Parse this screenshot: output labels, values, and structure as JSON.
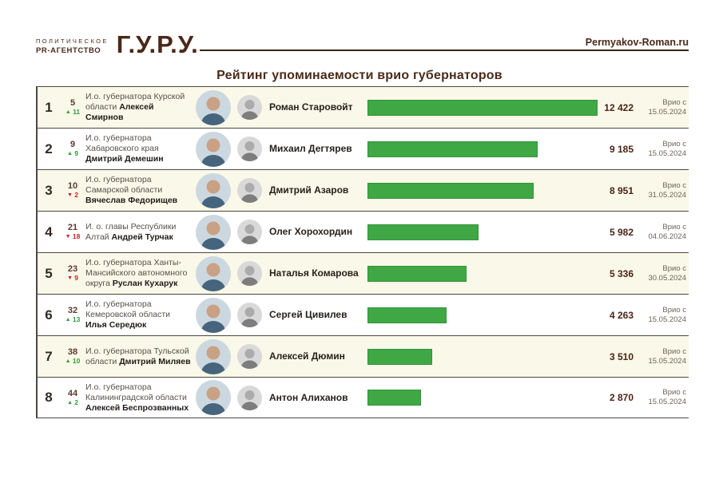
{
  "header": {
    "logo_line1": "ПОЛИТИЧЕСКОЕ",
    "logo_line2": "PR-АГЕНТСТВО",
    "logo_main": "Г.У.Р.У.",
    "site": "Permyakov-Roman.ru"
  },
  "title": "Рейтинг упоминаемости врио губернаторов",
  "colors": {
    "brand_brown": "#4a2819",
    "bar_green": "#3fa845",
    "up_green": "#2f9e3c",
    "down_red": "#cd2026",
    "row_cream": "#faf8e8",
    "separator": "#4d4843"
  },
  "rows": [
    {
      "rank": "1",
      "prev": "5",
      "delta": "11",
      "dir": "up",
      "desc_pre": "И.о. губернатора Курской области",
      "desc_name": "Алексей Смирнов",
      "predecessor": "Роман Старовойт",
      "value": "12 422",
      "value_num": 12422,
      "date_line1": "Врио с",
      "date_line2": "15.05.2024"
    },
    {
      "rank": "2",
      "prev": "9",
      "delta": "9",
      "dir": "up",
      "desc_pre": "И.о. губернатора Хабаровского края",
      "desc_name": "Дмитрий Демешин",
      "predecessor": "Михаил Дегтярев",
      "value": "9 185",
      "value_num": 9185,
      "date_line1": "Врио с",
      "date_line2": "15.05.2024"
    },
    {
      "rank": "3",
      "prev": "10",
      "delta": "2",
      "dir": "down",
      "desc_pre": "И.о. губернатора Самарской области",
      "desc_name": "Вячеслав Федорищев",
      "predecessor": "Дмитрий Азаров",
      "value": "8 951",
      "value_num": 8951,
      "date_line1": "Врио с",
      "date_line2": "31.05.2024"
    },
    {
      "rank": "4",
      "prev": "21",
      "delta": "18",
      "dir": "down",
      "desc_pre": "И. о. главы Республики Алтай",
      "desc_name": "Андрей Турчак",
      "predecessor": "Олег Хорохордин",
      "value": "5 982",
      "value_num": 5982,
      "date_line1": "Врио с",
      "date_line2": "04.06.2024"
    },
    {
      "rank": "5",
      "prev": "23",
      "delta": "9",
      "dir": "down",
      "desc_pre": "И.о. губернатора Ханты-Мансийского автономного округа",
      "desc_name": "Руслан Кухарук",
      "predecessor": "Наталья Комарова",
      "value": "5 336",
      "value_num": 5336,
      "date_line1": "Врио с",
      "date_line2": "30.05.2024"
    },
    {
      "rank": "6",
      "prev": "32",
      "delta": "13",
      "dir": "up",
      "desc_pre": "И.о. губернатора Кемеровской области",
      "desc_name": "Илья Середюк",
      "predecessor": "Сергей Цивилев",
      "value": "4 263",
      "value_num": 4263,
      "date_line1": "Врио с",
      "date_line2": "15.05.2024"
    },
    {
      "rank": "7",
      "prev": "38",
      "delta": "10",
      "dir": "up",
      "desc_pre": "И.о. губернатора Тульской области",
      "desc_name": "Дмитрий Миляев",
      "predecessor": "Алексей Дюмин",
      "value": "3 510",
      "value_num": 3510,
      "date_line1": "Врио с",
      "date_line2": "15.05.2024"
    },
    {
      "rank": "8",
      "prev": "44",
      "delta": "2",
      "dir": "up",
      "desc_pre": "И.о. губернатора Калининградской области",
      "desc_name": "Алексей Беспрозванных",
      "predecessor": "Антон Алиханов",
      "value": "2 870",
      "value_num": 2870,
      "date_line1": "Врио с",
      "date_line2": "15.05.2024"
    }
  ],
  "chart_data": {
    "type": "bar",
    "orientation": "horizontal",
    "title": "Рейтинг упоминаемости врио губернаторов",
    "categories": [
      "Роман Старовойт",
      "Михаил Дегтярев",
      "Дмитрий Азаров",
      "Олег Хорохордин",
      "Наталья Комарова",
      "Сергей Цивилев",
      "Алексей Дюмин",
      "Антон Алиханов"
    ],
    "values": [
      12422,
      9185,
      8951,
      5982,
      5336,
      4263,
      3510,
      2870
    ],
    "xlim": [
      0,
      12422
    ],
    "bar_color": "#3fa845",
    "grid": false,
    "legend": false
  }
}
